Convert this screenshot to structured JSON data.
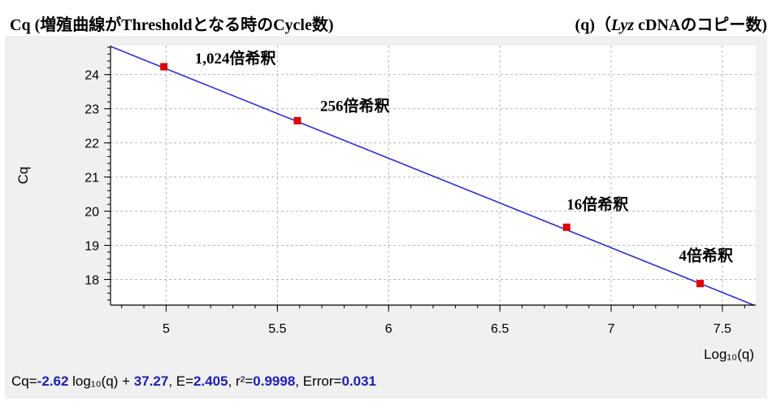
{
  "title_left": "Cq  (増殖曲線がThresholdとなる時のCycle数)",
  "title_right": {
    "prefix": "(q)（",
    "italic": "Lyz",
    "suffix": "  cDNAのコピー数)"
  },
  "equation": {
    "prefix": "Cq=",
    "slope": "-2.62",
    "log_term": " log₁₀(q) + ",
    "intercept": "37.27",
    "e_prefix": ", E=",
    "e_value": "2.405",
    "r2_prefix": ", r²=",
    "r2_value": "0.9998",
    "error_prefix": ", Error=",
    "error_value": "0.031"
  },
  "chart_data": {
    "type": "scatter",
    "xlabel": "Log₁₀(q)",
    "ylabel": "Cq",
    "xlim": [
      4.75,
      7.65
    ],
    "ylim": [
      17.25,
      24.85
    ],
    "x_ticks": [
      5,
      5.5,
      6,
      6.5,
      7,
      7.5
    ],
    "x_tick_labels": [
      "5",
      "5.5",
      "6",
      "6.5",
      "7",
      "7.5"
    ],
    "y_ticks": [
      18,
      19,
      20,
      21,
      22,
      23,
      24
    ],
    "y_tick_labels": [
      "18",
      "19",
      "20",
      "21",
      "22",
      "23",
      "24"
    ],
    "grid": true,
    "points": [
      {
        "x": 4.99,
        "y": 24.23,
        "label": "1,024倍希釈"
      },
      {
        "x": 5.59,
        "y": 22.65,
        "label": "256倍希釈"
      },
      {
        "x": 6.8,
        "y": 19.53,
        "label": "16倍希釈"
      },
      {
        "x": 7.4,
        "y": 17.88,
        "label": "4倍希釈"
      }
    ],
    "fit_line": {
      "slope": -2.62,
      "intercept": 37.27
    },
    "colors": {
      "line": "#3030d0",
      "point": "#e00000",
      "grid": "#b8b8b8"
    }
  }
}
